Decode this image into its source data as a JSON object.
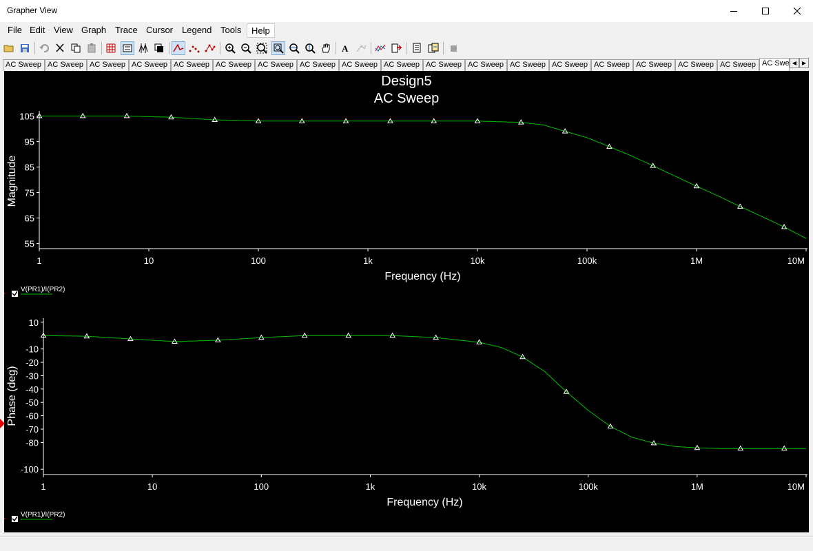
{
  "window": {
    "title": "Grapher View"
  },
  "menu": [
    "File",
    "Edit",
    "View",
    "Graph",
    "Trace",
    "Cursor",
    "Legend",
    "Tools",
    "Help"
  ],
  "toolbar": {
    "buttons": [
      "open-icon",
      "save-icon",
      "undo-icon",
      "cut-icon",
      "copy-icon",
      "paste-icon",
      "grid-icon",
      "legend-icon",
      "cursors-icon",
      "reverse-colors-icon",
      "lines-icon",
      "points-icon",
      "lines-points-icon",
      "zoom-in-icon",
      "zoom-out-icon",
      "zoom-full-icon",
      "zoom-area-icon",
      "zoom-x-icon",
      "zoom-y-icon",
      "pan-icon",
      "text-icon",
      "label-trace-icon",
      "overlay-traces-icon",
      "export-icon",
      "print-preview-icon",
      "exchange-icon",
      "stop-icon"
    ]
  },
  "tabs": {
    "labels": [
      "AC Sweep",
      "AC Sweep",
      "AC Sweep",
      "AC Sweep",
      "AC Sweep",
      "AC Sweep",
      "AC Sweep",
      "AC Sweep",
      "AC Sweep",
      "AC Sweep",
      "AC Sweep",
      "AC Sweep",
      "AC Sweep",
      "AC Sweep",
      "AC Sweep",
      "AC Sweep",
      "AC Sweep",
      "AC Sweep"
    ],
    "active_label": "AC Swe"
  },
  "graph": {
    "title": "Design5",
    "subtitle": "AC Sweep",
    "trace_color": "#00c000",
    "background": "#000000"
  },
  "chart_data": [
    {
      "type": "line",
      "title": "Design5",
      "subtitle": "AC Sweep",
      "xlabel": "Frequency (Hz)",
      "ylabel": "Magnitude",
      "xscale": "log",
      "xlim": [
        1,
        10000000
      ],
      "ylim": [
        53,
        107
      ],
      "xticks": [
        1,
        10,
        100,
        1000,
        10000,
        100000,
        1000000,
        10000000
      ],
      "xtick_labels": [
        "1",
        "10",
        "100",
        "1k",
        "10k",
        "100k",
        "1M",
        "10M"
      ],
      "yticks": [
        105,
        95,
        85,
        75,
        65,
        55
      ],
      "ytick_labels": [
        "105",
        "95",
        "85",
        "75",
        "65",
        "55"
      ],
      "legend": "V(PR1)/I(PR2)",
      "legend_position": "bottom-left",
      "series": [
        {
          "name": "V(PR1)/I(PR2)",
          "x": [
            1,
            2.5,
            6.3,
            16,
            40,
            100,
            250,
            630,
            1600,
            4000,
            10000,
            25000,
            40000,
            63000,
            100000,
            160000,
            250000,
            400000,
            630000,
            1000000,
            1600000,
            2500000,
            4000000,
            6300000,
            10000000
          ],
          "values": [
            105,
            105,
            105,
            104.5,
            103.5,
            103,
            103,
            103,
            103,
            103,
            103,
            102.5,
            101.5,
            99,
            96.5,
            93,
            89.5,
            85.5,
            81.5,
            77.5,
            73.5,
            69.5,
            65.5,
            61.5,
            57
          ]
        }
      ],
      "markers_x": [
        1,
        2.5,
        6.3,
        16,
        40,
        100,
        250,
        630,
        1600,
        4000,
        10000,
        25000,
        63000,
        160000,
        400000,
        1000000,
        2500000,
        6300000
      ]
    },
    {
      "type": "line",
      "xlabel": "Frequency (Hz)",
      "ylabel": "Phase (deg)",
      "xscale": "log",
      "xlim": [
        1,
        10000000
      ],
      "ylim": [
        -104,
        13
      ],
      "xticks": [
        1,
        10,
        100,
        1000,
        10000,
        100000,
        1000000,
        10000000
      ],
      "xtick_labels": [
        "1",
        "10",
        "100",
        "1k",
        "10k",
        "100k",
        "1M",
        "10M"
      ],
      "yticks": [
        10,
        -10,
        -20,
        -30,
        -40,
        -50,
        -60,
        -70,
        -80,
        -100
      ],
      "ytick_labels": [
        "10",
        "-10",
        "-20",
        "-30",
        "-40",
        "-50",
        "-60",
        "-70",
        "-80",
        "-100"
      ],
      "legend": "V(PR1)/I(PR2)",
      "legend_position": "bottom-left",
      "series": [
        {
          "name": "V(PR1)/I(PR2)",
          "x": [
            1,
            2.5,
            6.3,
            16,
            40,
            100,
            250,
            630,
            1600,
            4000,
            10000,
            16000,
            25000,
            40000,
            63000,
            100000,
            160000,
            250000,
            400000,
            630000,
            1000000,
            1600000,
            2500000,
            4000000,
            10000000
          ],
          "values": [
            0,
            -0.5,
            -2.5,
            -4.5,
            -3.5,
            -1.5,
            0,
            0,
            0,
            -1.5,
            -5,
            -9,
            -16,
            -27,
            -42,
            -56,
            -68,
            -76,
            -80.5,
            -83,
            -84,
            -84.5,
            -84.5,
            -84.5,
            -84.5
          ]
        }
      ],
      "markers_x": [
        1,
        2.5,
        6.3,
        16,
        40,
        100,
        250,
        630,
        1600,
        4000,
        10000,
        25000,
        63000,
        160000,
        400000,
        1000000,
        2500000,
        6300000
      ]
    }
  ]
}
